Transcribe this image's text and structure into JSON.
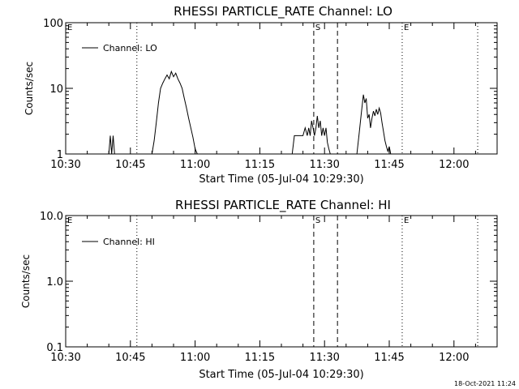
{
  "footer_timestamp": "18-Oct-2021 11:24",
  "chart_data": [
    {
      "type": "line",
      "title": "RHESSI PARTICLE_RATE Channel: LO",
      "xlabel": "Start Time (05-Jul-04 10:29:30)",
      "ylabel": "Counts/sec",
      "x_unit": "clock time (hh:mm) on 05-Jul-04",
      "x_range": [
        "10:30",
        "12:10"
      ],
      "x_ticks": [
        "10:30",
        "10:45",
        "11:00",
        "11:15",
        "11:30",
        "11:45",
        "12:00"
      ],
      "y_scale": "log",
      "y_range": [
        1,
        100
      ],
      "y_ticks": [
        {
          "value": 1,
          "label": "1"
        },
        {
          "value": 10,
          "label": "10"
        },
        {
          "value": 100,
          "label": "100"
        }
      ],
      "legend": {
        "position": "top-left",
        "entries": [
          "Channel: LO"
        ]
      },
      "series": [
        {
          "name": "Channel: LO",
          "segments": [
            {
              "x": [
                "10:40:00",
                "10:40:20",
                "10:40:40",
                "10:41:00",
                "10:41:20",
                "10:41:40"
              ],
              "y": [
                1,
                1.9,
                1,
                1.9,
                1,
                1
              ]
            },
            {
              "x": [
                "10:50:00",
                "10:50:30",
                "10:51:00",
                "10:51:30",
                "10:52:00",
                "10:52:30",
                "10:53:00",
                "10:53:30",
                "10:54:00",
                "10:54:30",
                "10:55:00",
                "10:55:30",
                "10:56:00",
                "10:56:30",
                "10:57:00",
                "10:57:30",
                "10:58:00",
                "10:58:30",
                "10:59:00",
                "10:59:30",
                "11:00:00",
                "11:00:30"
              ],
              "y": [
                1,
                1.6,
                3,
                6,
                10,
                12,
                14,
                16,
                14,
                18,
                15,
                17,
                14,
                12,
                10,
                7,
                5,
                3.5,
                2.5,
                1.8,
                1.2,
                1
              ]
            },
            {
              "x": [
                "11:22:30",
                "11:23:00",
                "11:24:00",
                "11:25:00",
                "11:25:30",
                "11:26:00",
                "11:26:20",
                "11:26:40",
                "11:27:00",
                "11:27:20",
                "11:27:40",
                "11:28:00",
                "11:28:20",
                "11:28:40",
                "11:29:00",
                "11:29:20",
                "11:29:40",
                "11:30:00",
                "11:30:20",
                "11:30:40",
                "11:31:00",
                "11:31:20"
              ],
              "y": [
                1,
                1.9,
                1.9,
                1.9,
                2.5,
                1.9,
                2.5,
                1.9,
                3.2,
                2.5,
                1.9,
                2.5,
                3.8,
                2.5,
                3.2,
                1.9,
                2.5,
                1.9,
                2.5,
                1.5,
                1.2,
                1
              ]
            },
            {
              "x": [
                "11:37:30",
                "11:38:00",
                "11:38:30",
                "11:39:00",
                "11:39:20",
                "11:39:40",
                "11:40:00",
                "11:40:20",
                "11:40:40",
                "11:41:00",
                "11:41:20",
                "11:41:40",
                "11:42:00",
                "11:42:20",
                "11:42:40",
                "11:43:00",
                "11:43:20",
                "11:43:40",
                "11:44:00",
                "11:44:20",
                "11:44:40",
                "11:45:00",
                "11:45:20"
              ],
              "y": [
                1,
                2,
                4,
                8,
                6,
                7,
                3.5,
                4,
                2.5,
                3.5,
                4.5,
                3.8,
                4.8,
                4,
                5,
                4.2,
                3,
                2.2,
                1.6,
                1.3,
                1.1,
                1.3,
                1
              ]
            }
          ]
        }
      ],
      "markers": [
        {
          "label": "E",
          "x": "10:30:00",
          "style": "dotted"
        },
        {
          "label": "",
          "x": "10:46:30",
          "style": "dotted"
        },
        {
          "label": "S",
          "x": "11:27:30",
          "style": "dashed"
        },
        {
          "label": "",
          "x": "11:33:00",
          "style": "dashed"
        },
        {
          "label": "E",
          "x": "11:48:00",
          "style": "dotted"
        },
        {
          "label": "",
          "x": "12:05:30",
          "style": "dotted"
        }
      ]
    },
    {
      "type": "line",
      "title": "RHESSI PARTICLE_RATE Channel: HI",
      "xlabel": "Start Time (05-Jul-04 10:29:30)",
      "ylabel": "Counts/sec",
      "x_unit": "clock time (hh:mm) on 05-Jul-04",
      "x_range": [
        "10:30",
        "12:10"
      ],
      "x_ticks": [
        "10:30",
        "10:45",
        "11:00",
        "11:15",
        "11:30",
        "11:45",
        "12:00"
      ],
      "y_scale": "log",
      "y_range": [
        0.1,
        10
      ],
      "y_ticks": [
        {
          "value": 0.1,
          "label": "0.1"
        },
        {
          "value": 1,
          "label": "1.0"
        },
        {
          "value": 10,
          "label": "10.0"
        }
      ],
      "legend": {
        "position": "top-left",
        "entries": [
          "Channel: HI"
        ]
      },
      "series": [
        {
          "name": "Channel: HI",
          "segments": []
        }
      ],
      "markers": [
        {
          "label": "E",
          "x": "10:30:00",
          "style": "dotted"
        },
        {
          "label": "",
          "x": "10:46:30",
          "style": "dotted"
        },
        {
          "label": "S",
          "x": "11:27:30",
          "style": "dashed"
        },
        {
          "label": "",
          "x": "11:33:00",
          "style": "dashed"
        },
        {
          "label": "E",
          "x": "11:48:00",
          "style": "dotted"
        },
        {
          "label": "",
          "x": "12:05:30",
          "style": "dotted"
        }
      ]
    }
  ]
}
